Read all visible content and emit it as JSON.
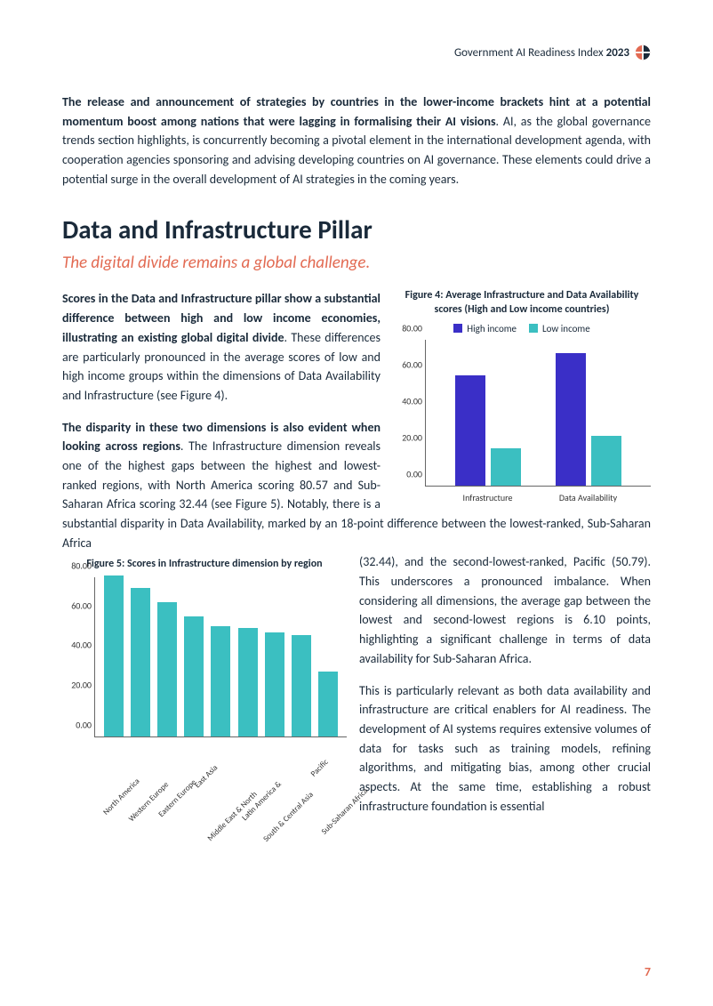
{
  "header": {
    "title_prefix": "Government AI Readiness Index ",
    "title_year": "2023"
  },
  "intro": {
    "bold_lead": "The release and announcement of strategies by countries in the lower-income brackets hint at a potential momentum boost among nations that were lagging in formalising their AI visions",
    "rest": ". AI, as the global governance trends section highlights, is concurrently becoming a pivotal element in the international development agenda, with cooperation agencies sponsoring and advising developing countries on AI governance. These elements could drive a potential surge in the overall development of AI strategies in the coming years."
  },
  "section": {
    "heading": "Data and Infrastructure Pillar",
    "subhead": "The digital divide remains a global challenge."
  },
  "para1": {
    "bold": "Scores in the Data and Infrastructure pillar show a substantial difference between high and low income economies, illustrating an existing global digital divide",
    "rest": ". These differences are particularly pronounced in the average scores of low and high income groups within the dimensions of Data Availability and Infrastructure (see Figure 4)."
  },
  "para2": {
    "bold": "The disparity in these two dimensions is also evident when looking across regions",
    "rest": ". The Infrastructure dimension reveals one of the highest gaps between the highest and lowest-ranked regions, with North America scoring 80.57 and Sub-Saharan Africa scoring 32.44 (see Figure 5). Notably, there is a substantial disparity in Data Availability, marked by an 18-point difference between the lowest-ranked, Sub-Saharan Africa (32.44), and the second-lowest-ranked, Pacific (50.79). This underscores a pronounced imbalance. When considering all dimensions, the average gap between the lowest and second-lowest regions is 6.10 points, highlighting a significant challenge in terms of data availability for Sub-Saharan Africa."
  },
  "para3": {
    "text": "This is particularly relevant as both data availability and infrastructure are critical enablers for AI readiness. The development of AI systems requires extensive volumes of data for tasks such as training models, refining algorithms, and mitigating bias, among other crucial aspects. At the same time, establishing a robust infrastructure foundation is essential"
  },
  "fig4": {
    "title": "Figure 4: Average Infrastructure and Data Availability scores (High and Low income countries)",
    "legend": {
      "hi": "High income",
      "lo": "Low income"
    },
    "colors": {
      "hi": "#3a2fc7",
      "lo": "#3bbfc1"
    },
    "ymax": 80,
    "ytick": 20,
    "yticks": [
      "0.00",
      "20.00",
      "40.00",
      "60.00",
      "80.00"
    ],
    "categories": [
      "Infrastructure",
      "Data Availability"
    ],
    "values_hi": [
      60,
      72
    ],
    "values_lo": [
      20,
      27
    ]
  },
  "fig5": {
    "title": "Figure 5: Scores in Infrastructure dimension by region",
    "color": "#3bbfc1",
    "ymax": 80,
    "ytick": 20,
    "yticks": [
      "0.00",
      "20.00",
      "40.00",
      "60.00",
      "80.00"
    ],
    "categories": [
      "North America",
      "Western Europe",
      "Eastern Europe",
      "East Asia",
      "Middle East & North",
      "Latin America &",
      "South & Central Asia",
      "Pacific",
      "Sub-Saharan Africa"
    ],
    "values": [
      80.57,
      74,
      67,
      60,
      55,
      54,
      52,
      50.79,
      32.44
    ]
  },
  "page_number": "7"
}
